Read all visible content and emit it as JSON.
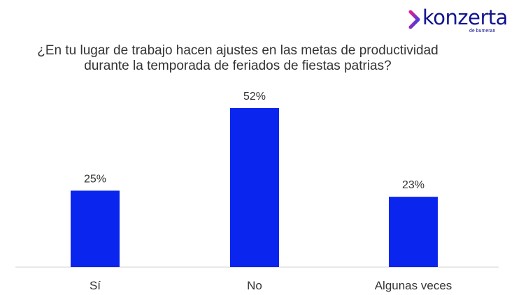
{
  "brand": {
    "name": "konzerta",
    "tagline": "de bumeran",
    "colors": {
      "primary": "#13148f",
      "gradient_start": "#e0208f",
      "gradient_end": "#2a3df0"
    },
    "icon": "chevron-right-icon"
  },
  "chart_data": {
    "type": "bar",
    "title": [
      "¿En tu lugar de trabajo hacen ajustes en las metas de productividad",
      "durante la temporada de feriados de fiestas patrias?"
    ],
    "categories": [
      "Sí",
      "No",
      "Algunas veces"
    ],
    "values": [
      25,
      52,
      23
    ],
    "value_labels": [
      "25%",
      "52%",
      "23%"
    ],
    "unit": "%",
    "bar_color": "#0a26ee",
    "ylim": [
      0,
      52
    ],
    "grid": false,
    "legend": "none"
  }
}
